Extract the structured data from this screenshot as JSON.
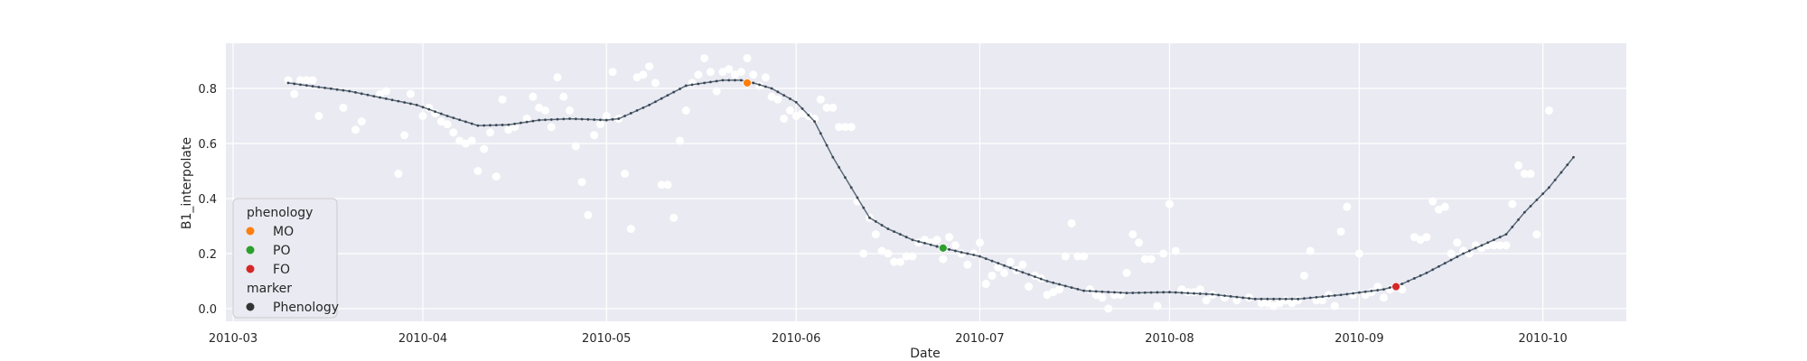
{
  "chart_data": {
    "type": "scatter",
    "xlabel": "Date",
    "ylabel": "B1_interpolate",
    "x_ticks": [
      "2010-03",
      "2010-04",
      "2010-05",
      "2010-06",
      "2010-07",
      "2010-08",
      "2010-09",
      "2010-10"
    ],
    "y_ticks": [
      "0.0",
      "0.2",
      "0.4",
      "0.6",
      "0.8"
    ],
    "xlim": [
      "2010-03-01",
      "2010-10-31"
    ],
    "ylim": [
      -0.045,
      0.96
    ],
    "grid": true,
    "background": "#eaeaf2",
    "legend": {
      "position": "lower-left",
      "entries": [
        {
          "label": "phenology",
          "kind": "header"
        },
        {
          "label": "MO",
          "color": "#ff7f0e"
        },
        {
          "label": "PO",
          "color": "#2ca02c"
        },
        {
          "label": "FO",
          "color": "#d62728"
        },
        {
          "label": "marker",
          "kind": "header"
        },
        {
          "label": "Phenology",
          "color": "#333333"
        }
      ]
    },
    "series": [
      {
        "kind": "observations",
        "color": "#ffffff",
        "points": [
          [
            "2010-03-10",
            0.83
          ],
          [
            "2010-03-11",
            0.78
          ],
          [
            "2010-03-12",
            0.83
          ],
          [
            "2010-03-13",
            0.83
          ],
          [
            "2010-03-14",
            0.83
          ],
          [
            "2010-03-15",
            0.7
          ],
          [
            "2010-03-19",
            0.73
          ],
          [
            "2010-03-21",
            0.65
          ],
          [
            "2010-03-22",
            0.68
          ],
          [
            "2010-03-25",
            0.78
          ],
          [
            "2010-03-26",
            0.79
          ],
          [
            "2010-03-28",
            0.49
          ],
          [
            "2010-03-29",
            0.63
          ],
          [
            "2010-03-30",
            0.78
          ],
          [
            "2010-04-01",
            0.7
          ],
          [
            "2010-04-02",
            0.73
          ],
          [
            "2010-04-03",
            0.71
          ],
          [
            "2010-04-04",
            0.68
          ],
          [
            "2010-04-05",
            0.67
          ],
          [
            "2010-04-06",
            0.64
          ],
          [
            "2010-04-07",
            0.61
          ],
          [
            "2010-04-08",
            0.6
          ],
          [
            "2010-04-09",
            0.61
          ],
          [
            "2010-04-10",
            0.5
          ],
          [
            "2010-04-11",
            0.58
          ],
          [
            "2010-04-12",
            0.64
          ],
          [
            "2010-04-13",
            0.48
          ],
          [
            "2010-04-14",
            0.76
          ],
          [
            "2010-04-15",
            0.65
          ],
          [
            "2010-04-16",
            0.66
          ],
          [
            "2010-04-18",
            0.69
          ],
          [
            "2010-04-19",
            0.77
          ],
          [
            "2010-04-20",
            0.73
          ],
          [
            "2010-04-21",
            0.72
          ],
          [
            "2010-04-22",
            0.66
          ],
          [
            "2010-04-23",
            0.84
          ],
          [
            "2010-04-24",
            0.77
          ],
          [
            "2010-04-25",
            0.72
          ],
          [
            "2010-04-26",
            0.59
          ],
          [
            "2010-04-27",
            0.46
          ],
          [
            "2010-04-28",
            0.34
          ],
          [
            "2010-04-29",
            0.63
          ],
          [
            "2010-04-30",
            0.67
          ],
          [
            "2010-05-01",
            0.7
          ],
          [
            "2010-05-02",
            0.86
          ],
          [
            "2010-05-03",
            0.69
          ],
          [
            "2010-05-04",
            0.49
          ],
          [
            "2010-05-05",
            0.29
          ],
          [
            "2010-05-06",
            0.84
          ],
          [
            "2010-05-07",
            0.85
          ],
          [
            "2010-05-08",
            0.88
          ],
          [
            "2010-05-09",
            0.82
          ],
          [
            "2010-05-10",
            0.45
          ],
          [
            "2010-05-11",
            0.45
          ],
          [
            "2010-05-12",
            0.33
          ],
          [
            "2010-05-13",
            0.61
          ],
          [
            "2010-05-14",
            0.72
          ],
          [
            "2010-05-15",
            0.82
          ],
          [
            "2010-05-16",
            0.85
          ],
          [
            "2010-05-17",
            0.91
          ],
          [
            "2010-05-18",
            0.86
          ],
          [
            "2010-05-19",
            0.79
          ],
          [
            "2010-05-20",
            0.86
          ],
          [
            "2010-05-21",
            0.87
          ],
          [
            "2010-05-22",
            0.85
          ],
          [
            "2010-05-23",
            0.86
          ],
          [
            "2010-05-24",
            0.91
          ],
          [
            "2010-05-25",
            0.85
          ],
          [
            "2010-05-26",
            0.81
          ],
          [
            "2010-05-27",
            0.84
          ],
          [
            "2010-05-28",
            0.77
          ],
          [
            "2010-05-29",
            0.76
          ],
          [
            "2010-05-30",
            0.69
          ],
          [
            "2010-05-31",
            0.72
          ],
          [
            "2010-06-01",
            0.7
          ],
          [
            "2010-06-02",
            0.71
          ],
          [
            "2010-06-03",
            0.7
          ],
          [
            "2010-06-04",
            0.69
          ],
          [
            "2010-06-05",
            0.76
          ],
          [
            "2010-06-06",
            0.73
          ],
          [
            "2010-06-07",
            0.73
          ],
          [
            "2010-06-08",
            0.66
          ],
          [
            "2010-06-09",
            0.66
          ],
          [
            "2010-06-10",
            0.66
          ],
          [
            "2010-06-11",
            0.39
          ],
          [
            "2010-06-12",
            0.2
          ],
          [
            "2010-06-13",
            0.33
          ],
          [
            "2010-06-14",
            0.27
          ],
          [
            "2010-06-15",
            0.21
          ],
          [
            "2010-06-16",
            0.2
          ],
          [
            "2010-06-17",
            0.17
          ],
          [
            "2010-06-18",
            0.17
          ],
          [
            "2010-06-19",
            0.19
          ],
          [
            "2010-06-20",
            0.19
          ],
          [
            "2010-06-21",
            0.24
          ],
          [
            "2010-06-22",
            0.25
          ],
          [
            "2010-06-23",
            0.24
          ],
          [
            "2010-06-24",
            0.25
          ],
          [
            "2010-06-25",
            0.18
          ],
          [
            "2010-06-26",
            0.26
          ],
          [
            "2010-06-27",
            0.23
          ],
          [
            "2010-06-28",
            0.2
          ],
          [
            "2010-06-29",
            0.16
          ],
          [
            "2010-06-30",
            0.2
          ],
          [
            "2010-07-01",
            0.24
          ],
          [
            "2010-07-02",
            0.09
          ],
          [
            "2010-07-03",
            0.12
          ],
          [
            "2010-07-04",
            0.15
          ],
          [
            "2010-07-05",
            0.13
          ],
          [
            "2010-07-06",
            0.17
          ],
          [
            "2010-07-07",
            0.14
          ],
          [
            "2010-07-08",
            0.16
          ],
          [
            "2010-07-09",
            0.08
          ],
          [
            "2010-07-10",
            0.12
          ],
          [
            "2010-07-11",
            0.11
          ],
          [
            "2010-07-12",
            0.05
          ],
          [
            "2010-07-13",
            0.06
          ],
          [
            "2010-07-14",
            0.07
          ],
          [
            "2010-07-15",
            0.19
          ],
          [
            "2010-07-16",
            0.31
          ],
          [
            "2010-07-17",
            0.19
          ],
          [
            "2010-07-18",
            0.19
          ],
          [
            "2010-07-19",
            0.07
          ],
          [
            "2010-07-20",
            0.05
          ],
          [
            "2010-07-21",
            0.04
          ],
          [
            "2010-07-22",
            0.0
          ],
          [
            "2010-07-23",
            0.05
          ],
          [
            "2010-07-24",
            0.05
          ],
          [
            "2010-07-25",
            0.13
          ],
          [
            "2010-07-26",
            0.27
          ],
          [
            "2010-07-27",
            0.24
          ],
          [
            "2010-07-28",
            0.18
          ],
          [
            "2010-07-29",
            0.18
          ],
          [
            "2010-07-30",
            0.01
          ],
          [
            "2010-07-31",
            0.2
          ],
          [
            "2010-08-01",
            0.38
          ],
          [
            "2010-08-02",
            0.21
          ],
          [
            "2010-08-03",
            0.07
          ],
          [
            "2010-08-04",
            0.06
          ],
          [
            "2010-08-05",
            0.06
          ],
          [
            "2010-08-06",
            0.07
          ],
          [
            "2010-08-07",
            0.03
          ],
          [
            "2010-08-08",
            0.05
          ],
          [
            "2010-08-10",
            0.04
          ],
          [
            "2010-08-12",
            0.03
          ],
          [
            "2010-08-14",
            0.04
          ],
          [
            "2010-08-16",
            0.02
          ],
          [
            "2010-08-17",
            0.02
          ],
          [
            "2010-08-18",
            0.01
          ],
          [
            "2010-08-19",
            0.02
          ],
          [
            "2010-08-20",
            0.03
          ],
          [
            "2010-08-21",
            0.02
          ],
          [
            "2010-08-22",
            0.03
          ],
          [
            "2010-08-23",
            0.12
          ],
          [
            "2010-08-24",
            0.21
          ],
          [
            "2010-08-25",
            0.03
          ],
          [
            "2010-08-26",
            0.03
          ],
          [
            "2010-08-27",
            0.05
          ],
          [
            "2010-08-28",
            0.01
          ],
          [
            "2010-08-29",
            0.28
          ],
          [
            "2010-08-30",
            0.37
          ],
          [
            "2010-08-31",
            0.05
          ],
          [
            "2010-09-01",
            0.2
          ],
          [
            "2010-09-02",
            0.05
          ],
          [
            "2010-09-03",
            0.06
          ],
          [
            "2010-09-04",
            0.08
          ],
          [
            "2010-09-05",
            0.04
          ],
          [
            "2010-09-06",
            0.07
          ],
          [
            "2010-09-07",
            0.08
          ],
          [
            "2010-09-08",
            0.07
          ],
          [
            "2010-09-10",
            0.26
          ],
          [
            "2010-09-11",
            0.25
          ],
          [
            "2010-09-12",
            0.26
          ],
          [
            "2010-09-13",
            0.39
          ],
          [
            "2010-09-14",
            0.36
          ],
          [
            "2010-09-15",
            0.37
          ],
          [
            "2010-09-16",
            0.2
          ],
          [
            "2010-09-17",
            0.24
          ],
          [
            "2010-09-18",
            0.21
          ],
          [
            "2010-09-19",
            0.2
          ],
          [
            "2010-09-20",
            0.23
          ],
          [
            "2010-09-21",
            0.22
          ],
          [
            "2010-09-22",
            0.23
          ],
          [
            "2010-09-23",
            0.23
          ],
          [
            "2010-09-24",
            0.23
          ],
          [
            "2010-09-25",
            0.23
          ],
          [
            "2010-09-26",
            0.38
          ],
          [
            "2010-09-27",
            0.52
          ],
          [
            "2010-09-28",
            0.49
          ],
          [
            "2010-09-29",
            0.49
          ],
          [
            "2010-09-30",
            0.27
          ],
          [
            "2010-10-02",
            0.72
          ]
        ]
      },
      {
        "kind": "interpolated-line",
        "color": "#5a6b7a",
        "points": [
          [
            "2010-03-10",
            0.82
          ],
          [
            "2010-03-20",
            0.79
          ],
          [
            "2010-03-31",
            0.74
          ],
          [
            "2010-04-05",
            0.7
          ],
          [
            "2010-04-10",
            0.665
          ],
          [
            "2010-04-15",
            0.668
          ],
          [
            "2010-04-20",
            0.685
          ],
          [
            "2010-04-25",
            0.69
          ],
          [
            "2010-05-01",
            0.685
          ],
          [
            "2010-05-03",
            0.69
          ],
          [
            "2010-05-08",
            0.74
          ],
          [
            "2010-05-14",
            0.81
          ],
          [
            "2010-05-20",
            0.83
          ],
          [
            "2010-05-23",
            0.83
          ],
          [
            "2010-05-25",
            0.82
          ],
          [
            "2010-05-28",
            0.8
          ],
          [
            "2010-06-01",
            0.75
          ],
          [
            "2010-06-04",
            0.68
          ],
          [
            "2010-06-07",
            0.55
          ],
          [
            "2010-06-10",
            0.44
          ],
          [
            "2010-06-13",
            0.33
          ],
          [
            "2010-06-16",
            0.29
          ],
          [
            "2010-06-20",
            0.25
          ],
          [
            "2010-06-25",
            0.22
          ],
          [
            "2010-07-01",
            0.19
          ],
          [
            "2010-07-07",
            0.14
          ],
          [
            "2010-07-12",
            0.1
          ],
          [
            "2010-07-18",
            0.065
          ],
          [
            "2010-07-25",
            0.057
          ],
          [
            "2010-08-01",
            0.06
          ],
          [
            "2010-08-08",
            0.052
          ],
          [
            "2010-08-15",
            0.035
          ],
          [
            "2010-08-22",
            0.035
          ],
          [
            "2010-08-29",
            0.05
          ],
          [
            "2010-09-05",
            0.07
          ],
          [
            "2010-09-08",
            0.09
          ],
          [
            "2010-09-12",
            0.13
          ],
          [
            "2010-09-18",
            0.2
          ],
          [
            "2010-09-22",
            0.24
          ],
          [
            "2010-09-25",
            0.27
          ],
          [
            "2010-09-28",
            0.35
          ],
          [
            "2010-10-02",
            0.44
          ],
          [
            "2010-10-06",
            0.55
          ]
        ]
      },
      {
        "kind": "phenology",
        "points": [
          {
            "label": "MO",
            "x": "2010-05-24",
            "y": 0.82,
            "color": "#ff7f0e"
          },
          {
            "label": "PO",
            "x": "2010-06-25",
            "y": 0.22,
            "color": "#2ca02c"
          },
          {
            "label": "FO",
            "x": "2010-09-07",
            "y": 0.08,
            "color": "#d62728"
          }
        ]
      }
    ]
  }
}
